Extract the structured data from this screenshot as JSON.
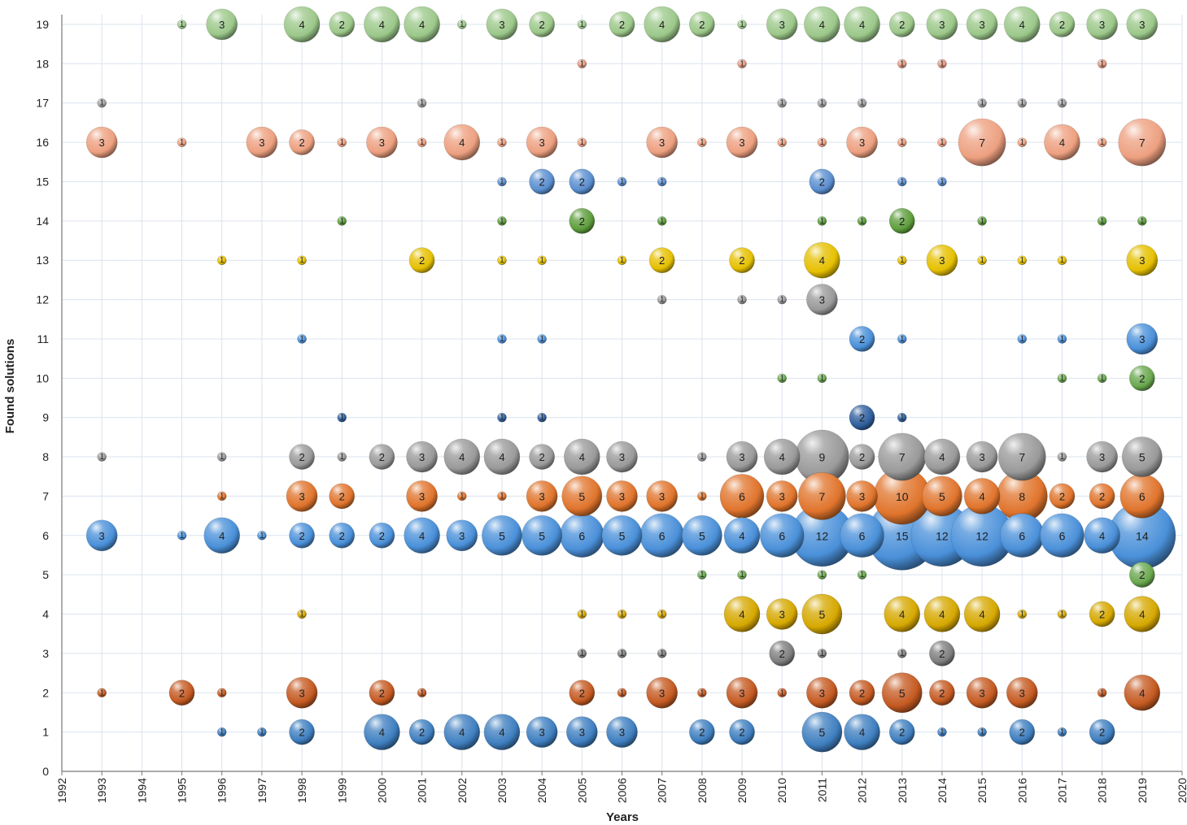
{
  "chart_data": {
    "type": "bubble",
    "xlabel": "Years",
    "ylabel": "Found solutions",
    "xlim": [
      1992,
      2020
    ],
    "ylim": [
      0,
      19
    ],
    "x_ticks": [
      1992,
      1993,
      1994,
      1995,
      1996,
      1997,
      1998,
      1999,
      2000,
      2001,
      2002,
      2003,
      2004,
      2005,
      2006,
      2007,
      2008,
      2009,
      2010,
      2011,
      2012,
      2013,
      2014,
      2015,
      2016,
      2017,
      2018,
      2019,
      2020
    ],
    "y_ticks": [
      0,
      1,
      2,
      3,
      4,
      5,
      6,
      7,
      8,
      9,
      10,
      11,
      12,
      13,
      14,
      15,
      16,
      17,
      18,
      19
    ],
    "grid": true,
    "row_colors": {
      "1": "#3f7fc0",
      "2": "#c55a22",
      "3": "#7f7f7f",
      "4": "#d6a800",
      "5": "#6aa84f",
      "6": "#4a90d9",
      "7": "#e0742c",
      "8": "#9a9a9a",
      "9": "#2f5f9e",
      "10": "#6aa84f",
      "11": "#4a90d9",
      "12": "#9a9a9a",
      "13": "#e6c000",
      "14": "#5e9e3c",
      "15": "#5b8fd0",
      "16": "#eda080",
      "17": "#a0a0a0",
      "18": "#e39880",
      "19": "#9cc88a"
    },
    "series": [
      {
        "y": 1,
        "points": [
          [
            1996,
            1
          ],
          [
            1997,
            1
          ],
          [
            1998,
            2
          ],
          [
            2000,
            4
          ],
          [
            2001,
            2
          ],
          [
            2002,
            4
          ],
          [
            2003,
            4
          ],
          [
            2004,
            3
          ],
          [
            2005,
            3
          ],
          [
            2006,
            3
          ],
          [
            2008,
            2
          ],
          [
            2009,
            2
          ],
          [
            2011,
            5
          ],
          [
            2012,
            4
          ],
          [
            2013,
            2
          ],
          [
            2014,
            1
          ],
          [
            2015,
            1
          ],
          [
            2016,
            2
          ],
          [
            2017,
            1
          ],
          [
            2018,
            2
          ]
        ]
      },
      {
        "y": 2,
        "points": [
          [
            1993,
            1
          ],
          [
            1995,
            2
          ],
          [
            1996,
            1
          ],
          [
            1998,
            3
          ],
          [
            2000,
            2
          ],
          [
            2001,
            1
          ],
          [
            2005,
            2
          ],
          [
            2006,
            1
          ],
          [
            2007,
            3
          ],
          [
            2008,
            1
          ],
          [
            2009,
            3
          ],
          [
            2010,
            1
          ],
          [
            2011,
            3
          ],
          [
            2012,
            2
          ],
          [
            2013,
            5
          ],
          [
            2014,
            2
          ],
          [
            2015,
            3
          ],
          [
            2016,
            3
          ],
          [
            2018,
            1
          ],
          [
            2019,
            4
          ]
        ]
      },
      {
        "y": 3,
        "points": [
          [
            2005,
            1
          ],
          [
            2006,
            1
          ],
          [
            2007,
            1
          ],
          [
            2010,
            2
          ],
          [
            2011,
            1
          ],
          [
            2013,
            1
          ],
          [
            2014,
            2
          ]
        ]
      },
      {
        "y": 4,
        "points": [
          [
            1998,
            1
          ],
          [
            2005,
            1
          ],
          [
            2006,
            1
          ],
          [
            2007,
            1
          ],
          [
            2009,
            4
          ],
          [
            2010,
            3
          ],
          [
            2011,
            5
          ],
          [
            2013,
            4
          ],
          [
            2014,
            4
          ],
          [
            2015,
            4
          ],
          [
            2016,
            1
          ],
          [
            2017,
            1
          ],
          [
            2018,
            2
          ],
          [
            2019,
            4
          ]
        ]
      },
      {
        "y": 5,
        "points": [
          [
            2008,
            1
          ],
          [
            2009,
            1
          ],
          [
            2011,
            1
          ],
          [
            2012,
            1
          ],
          [
            2019,
            2
          ]
        ]
      },
      {
        "y": 6,
        "points": [
          [
            1993,
            3
          ],
          [
            1995,
            1
          ],
          [
            1996,
            4
          ],
          [
            1997,
            1
          ],
          [
            1998,
            2
          ],
          [
            1999,
            2
          ],
          [
            2000,
            2
          ],
          [
            2001,
            4
          ],
          [
            2002,
            3
          ],
          [
            2003,
            5
          ],
          [
            2004,
            5
          ],
          [
            2005,
            6
          ],
          [
            2006,
            5
          ],
          [
            2007,
            6
          ],
          [
            2008,
            5
          ],
          [
            2009,
            4
          ],
          [
            2010,
            6
          ],
          [
            2011,
            12
          ],
          [
            2012,
            6
          ],
          [
            2013,
            15
          ],
          [
            2014,
            12
          ],
          [
            2015,
            12
          ],
          [
            2016,
            6
          ],
          [
            2017,
            6
          ],
          [
            2018,
            4
          ],
          [
            2019,
            14
          ]
        ]
      },
      {
        "y": 7,
        "points": [
          [
            1996,
            1
          ],
          [
            1998,
            3
          ],
          [
            1999,
            2
          ],
          [
            2001,
            3
          ],
          [
            2002,
            1
          ],
          [
            2003,
            1
          ],
          [
            2004,
            3
          ],
          [
            2005,
            5
          ],
          [
            2006,
            3
          ],
          [
            2007,
            3
          ],
          [
            2008,
            1
          ],
          [
            2009,
            6
          ],
          [
            2010,
            3
          ],
          [
            2011,
            7
          ],
          [
            2012,
            3
          ],
          [
            2013,
            10
          ],
          [
            2014,
            5
          ],
          [
            2015,
            4
          ],
          [
            2016,
            8
          ],
          [
            2017,
            2
          ],
          [
            2018,
            2
          ],
          [
            2019,
            6
          ]
        ]
      },
      {
        "y": 8,
        "points": [
          [
            1993,
            1
          ],
          [
            1996,
            1
          ],
          [
            1998,
            2
          ],
          [
            1999,
            1
          ],
          [
            2000,
            2
          ],
          [
            2001,
            3
          ],
          [
            2002,
            4
          ],
          [
            2003,
            4
          ],
          [
            2004,
            2
          ],
          [
            2005,
            4
          ],
          [
            2006,
            3
          ],
          [
            2008,
            1
          ],
          [
            2009,
            3
          ],
          [
            2010,
            4
          ],
          [
            2011,
            9
          ],
          [
            2012,
            2
          ],
          [
            2013,
            7
          ],
          [
            2014,
            4
          ],
          [
            2015,
            3
          ],
          [
            2016,
            7
          ],
          [
            2017,
            1
          ],
          [
            2018,
            3
          ],
          [
            2019,
            5
          ]
        ]
      },
      {
        "y": 9,
        "points": [
          [
            1999,
            1
          ],
          [
            2003,
            1
          ],
          [
            2004,
            1
          ],
          [
            2012,
            2
          ],
          [
            2013,
            1
          ]
        ]
      },
      {
        "y": 10,
        "points": [
          [
            2010,
            1
          ],
          [
            2011,
            1
          ],
          [
            2017,
            1
          ],
          [
            2018,
            1
          ],
          [
            2019,
            2
          ]
        ]
      },
      {
        "y": 11,
        "points": [
          [
            1998,
            1
          ],
          [
            2003,
            1
          ],
          [
            2004,
            1
          ],
          [
            2012,
            2
          ],
          [
            2013,
            1
          ],
          [
            2016,
            1
          ],
          [
            2017,
            1
          ],
          [
            2019,
            3
          ]
        ]
      },
      {
        "y": 12,
        "points": [
          [
            2007,
            1
          ],
          [
            2009,
            1
          ],
          [
            2010,
            1
          ],
          [
            2011,
            3
          ]
        ]
      },
      {
        "y": 13,
        "points": [
          [
            1996,
            1
          ],
          [
            1998,
            1
          ],
          [
            2001,
            2
          ],
          [
            2003,
            1
          ],
          [
            2004,
            1
          ],
          [
            2006,
            1
          ],
          [
            2007,
            2
          ],
          [
            2009,
            2
          ],
          [
            2011,
            4
          ],
          [
            2013,
            1
          ],
          [
            2014,
            3
          ],
          [
            2015,
            1
          ],
          [
            2016,
            1
          ],
          [
            2017,
            1
          ],
          [
            2019,
            3
          ]
        ]
      },
      {
        "y": 14,
        "points": [
          [
            1999,
            1
          ],
          [
            2003,
            1
          ],
          [
            2005,
            2
          ],
          [
            2007,
            1
          ],
          [
            2011,
            1
          ],
          [
            2012,
            1
          ],
          [
            2013,
            2
          ],
          [
            2015,
            1
          ],
          [
            2018,
            1
          ],
          [
            2019,
            1
          ]
        ]
      },
      {
        "y": 15,
        "points": [
          [
            2003,
            1
          ],
          [
            2004,
            2
          ],
          [
            2005,
            2
          ],
          [
            2006,
            1
          ],
          [
            2007,
            1
          ],
          [
            2011,
            2
          ],
          [
            2013,
            1
          ],
          [
            2014,
            1
          ]
        ]
      },
      {
        "y": 16,
        "points": [
          [
            1993,
            3
          ],
          [
            1995,
            1
          ],
          [
            1997,
            3
          ],
          [
            1998,
            2
          ],
          [
            1999,
            1
          ],
          [
            2000,
            3
          ],
          [
            2001,
            1
          ],
          [
            2002,
            4
          ],
          [
            2003,
            1
          ],
          [
            2004,
            3
          ],
          [
            2005,
            1
          ],
          [
            2007,
            3
          ],
          [
            2008,
            1
          ],
          [
            2009,
            3
          ],
          [
            2010,
            1
          ],
          [
            2011,
            1
          ],
          [
            2012,
            3
          ],
          [
            2013,
            1
          ],
          [
            2014,
            1
          ],
          [
            2015,
            7
          ],
          [
            2016,
            1
          ],
          [
            2017,
            4
          ],
          [
            2018,
            1
          ],
          [
            2019,
            7
          ]
        ]
      },
      {
        "y": 17,
        "points": [
          [
            1993,
            1
          ],
          [
            2001,
            1
          ],
          [
            2010,
            1
          ],
          [
            2011,
            1
          ],
          [
            2012,
            1
          ],
          [
            2015,
            1
          ],
          [
            2016,
            1
          ],
          [
            2017,
            1
          ]
        ]
      },
      {
        "y": 18,
        "points": [
          [
            2005,
            1
          ],
          [
            2009,
            1
          ],
          [
            2013,
            1
          ],
          [
            2014,
            1
          ],
          [
            2018,
            1
          ]
        ]
      },
      {
        "y": 19,
        "points": [
          [
            1995,
            1
          ],
          [
            1996,
            3
          ],
          [
            1998,
            4
          ],
          [
            1999,
            2
          ],
          [
            2000,
            4
          ],
          [
            2001,
            4
          ],
          [
            2002,
            1
          ],
          [
            2003,
            3
          ],
          [
            2004,
            2
          ],
          [
            2005,
            1
          ],
          [
            2006,
            2
          ],
          [
            2007,
            4
          ],
          [
            2008,
            2
          ],
          [
            2009,
            1
          ],
          [
            2010,
            3
          ],
          [
            2011,
            4
          ],
          [
            2012,
            4
          ],
          [
            2013,
            2
          ],
          [
            2014,
            3
          ],
          [
            2015,
            3
          ],
          [
            2016,
            4
          ],
          [
            2017,
            2
          ],
          [
            2018,
            3
          ],
          [
            2019,
            3
          ]
        ]
      }
    ]
  }
}
